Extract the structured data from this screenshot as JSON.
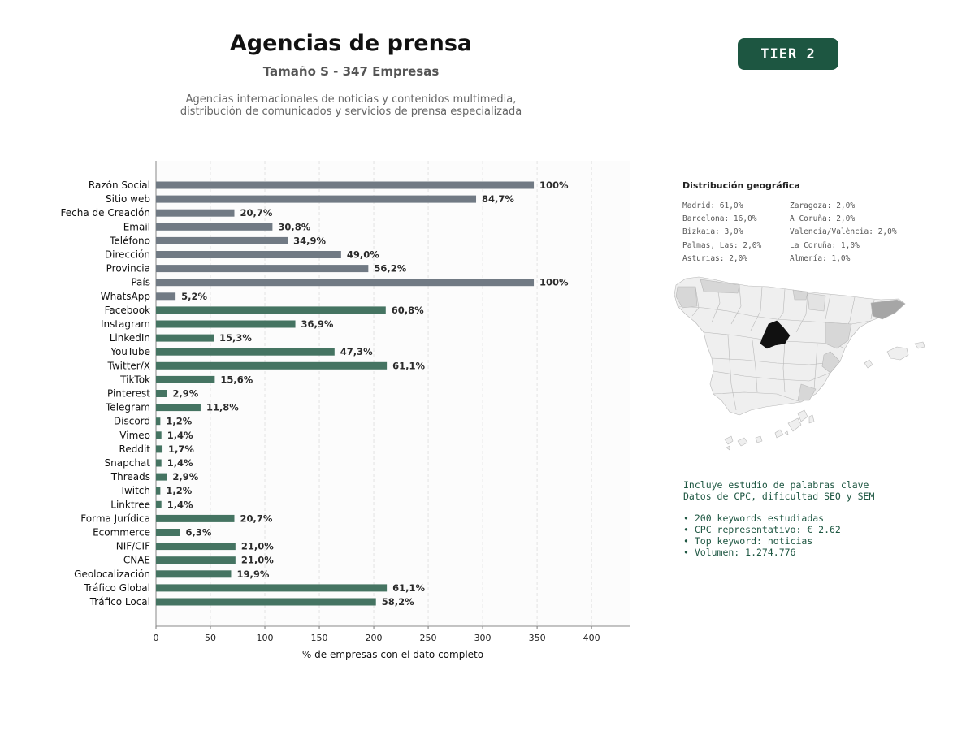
{
  "header": {
    "title": "Agencias de prensa",
    "subtitle": "Tamaño S - 347 Empresas",
    "description_line1": "Agencias internacionales de noticias y contenidos multimedia,",
    "description_line2": "distribución de comunicados y servicios de prensa especializada",
    "tier_label": "TIER 2"
  },
  "colors": {
    "contact_bar": "#717a84",
    "social_bar": "#457462",
    "accent": "#1d5641",
    "map_highlight": "#111111",
    "map_mid": "#a6a6a6",
    "map_light": "#d7d7d7",
    "map_base": "#efefef"
  },
  "chart_data": {
    "type": "bar",
    "orientation": "horizontal",
    "xlabel": "% de empresas con el dato completo",
    "xlim": [
      0,
      435
    ],
    "xticks": [
      0,
      50,
      100,
      150,
      200,
      250,
      300,
      350,
      400
    ],
    "grid": "vertical dashed",
    "categories": [
      "Razón Social",
      "Sitio web",
      "Fecha de Creación",
      "Email",
      "Teléfono",
      "Dirección",
      "Provincia",
      "País",
      "WhatsApp",
      "Facebook",
      "Instagram",
      "LinkedIn",
      "YouTube",
      "Twitter/X",
      "TikTok",
      "Pinterest",
      "Telegram",
      "Discord",
      "Vimeo",
      "Reddit",
      "Snapchat",
      "Threads",
      "Twitch",
      "Linktree",
      "Forma Jurídica",
      "Ecommerce",
      "NIF/CIF",
      "CNAE",
      "Geolocalización",
      "Tráfico Global",
      "Tráfico Local"
    ],
    "values": [
      347,
      294,
      72,
      107,
      121,
      170,
      195,
      347,
      18,
      211,
      128,
      53,
      164,
      212,
      54,
      10,
      41,
      4,
      5,
      6,
      5,
      10,
      4,
      5,
      72,
      22,
      73,
      73,
      69,
      212,
      202
    ],
    "labels": [
      "100%",
      "84,7%",
      "20,7%",
      "30,8%",
      "34,9%",
      "49,0%",
      "56,2%",
      "100%",
      "5,2%",
      "60,8%",
      "36,9%",
      "15,3%",
      "47,3%",
      "61,1%",
      "15,6%",
      "2,9%",
      "11,8%",
      "1,2%",
      "1,4%",
      "1,7%",
      "1,4%",
      "2,9%",
      "1,2%",
      "1,4%",
      "20,7%",
      "6,3%",
      "21,0%",
      "21,0%",
      "19,9%",
      "61,1%",
      "58,2%"
    ],
    "groups": [
      "contact",
      "contact",
      "contact",
      "contact",
      "contact",
      "contact",
      "contact",
      "contact",
      "contact",
      "social",
      "social",
      "social",
      "social",
      "social",
      "social",
      "social",
      "social",
      "social",
      "social",
      "social",
      "social",
      "social",
      "social",
      "social",
      "social",
      "social",
      "social",
      "social",
      "social",
      "social",
      "social"
    ]
  },
  "geo": {
    "title": "Distribución geográfica",
    "left_col": [
      "Madrid: 61,0%",
      "Barcelona: 16,0%",
      "Bizkaia: 3,0%",
      "Palmas, Las: 2,0%",
      "Asturias: 2,0%"
    ],
    "right_col": [
      "Zaragoza: 2,0%",
      "A Coruña: 2,0%",
      "Valencia/València: 2,0%",
      "La Coruña: 1,0%",
      "Almería: 1,0%"
    ]
  },
  "keywords": {
    "line1": "Incluye estudio de palabras clave",
    "line2": "Datos de CPC, dificultad SEO y SEM",
    "bullets": [
      "• 200 keywords estudiadas",
      "• CPC representativo: € 2.62",
      "• Top keyword: noticias",
      "• Volumen: 1.274.776"
    ]
  }
}
